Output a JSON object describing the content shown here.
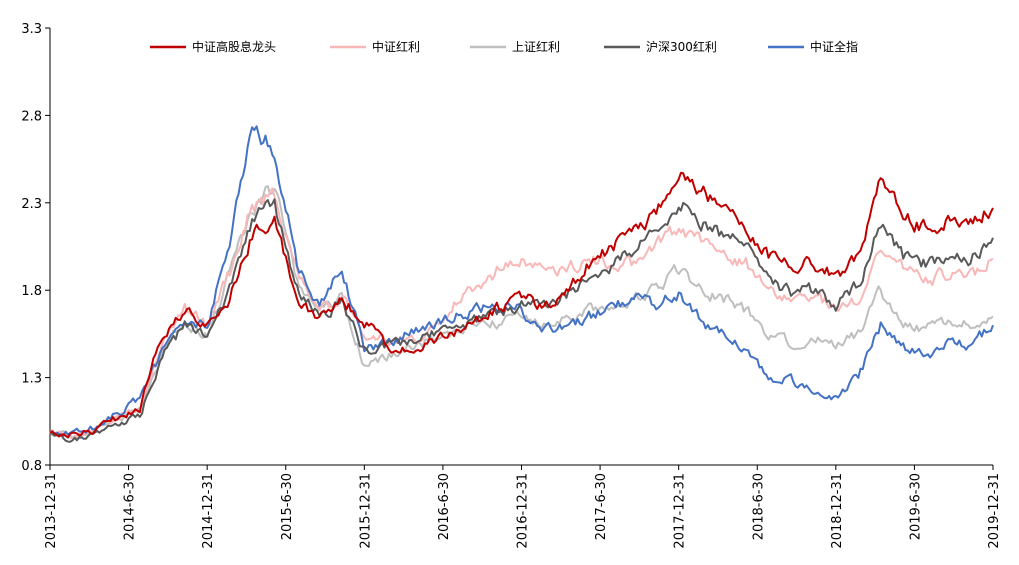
{
  "chart_data": {
    "type": "line",
    "title": "",
    "xlabel": "",
    "ylabel": "",
    "ylim": [
      0.8,
      3.3
    ],
    "y_ticks": [
      "0.8",
      "1.3",
      "1.8",
      "2.3",
      "2.8",
      "3.3"
    ],
    "x_ticks": [
      "2013-12-31",
      "2014-6-30",
      "2014-12-31",
      "2015-6-30",
      "2015-12-31",
      "2016-6-30",
      "2016-12-31",
      "2017-6-30",
      "2017-12-31",
      "2018-6-30",
      "2018-12-31",
      "2019-6-30",
      "2019-12-31"
    ],
    "legend_position": "top",
    "grid": false,
    "series": [
      {
        "name": "中证高股息龙头",
        "color": "#c00000",
        "values": [
          1.0,
          0.97,
          1.0,
          1.07,
          1.12,
          1.55,
          1.68,
          1.58,
          1.75,
          2.12,
          2.22,
          1.75,
          1.65,
          1.75,
          1.62,
          1.48,
          1.45,
          1.52,
          1.55,
          1.62,
          1.7,
          1.75,
          1.72,
          1.8,
          1.95,
          2.05,
          2.12,
          2.25,
          2.48,
          2.38,
          2.28,
          2.18,
          2.0,
          1.95,
          1.95,
          1.88,
          2.0,
          2.45,
          2.22,
          2.15,
          2.22,
          2.2,
          2.27
        ]
      },
      {
        "name": "中证红利",
        "color": "#f8b8b8",
        "values": [
          1.0,
          0.97,
          1.0,
          1.07,
          1.12,
          1.5,
          1.7,
          1.6,
          1.9,
          2.28,
          2.35,
          1.9,
          1.68,
          1.78,
          1.55,
          1.52,
          1.5,
          1.6,
          1.72,
          1.82,
          1.92,
          1.98,
          1.9,
          1.93,
          1.98,
          1.95,
          1.95,
          2.05,
          2.15,
          2.1,
          2.0,
          1.95,
          1.8,
          1.75,
          1.78,
          1.68,
          1.75,
          2.05,
          1.92,
          1.85,
          1.9,
          1.88,
          1.98
        ]
      },
      {
        "name": "上证红利",
        "color": "#bfbfbf",
        "values": [
          1.0,
          0.96,
          0.99,
          1.05,
          1.1,
          1.45,
          1.62,
          1.55,
          1.9,
          2.25,
          2.4,
          1.85,
          1.7,
          1.75,
          1.38,
          1.42,
          1.48,
          1.52,
          1.55,
          1.6,
          1.62,
          1.65,
          1.62,
          1.65,
          1.68,
          1.7,
          1.75,
          1.82,
          1.92,
          1.8,
          1.75,
          1.68,
          1.55,
          1.5,
          1.52,
          1.48,
          1.55,
          1.8,
          1.62,
          1.58,
          1.62,
          1.6,
          1.65
        ]
      },
      {
        "name": "沪深300红利",
        "color": "#595959",
        "values": [
          1.0,
          0.95,
          0.98,
          1.04,
          1.08,
          1.42,
          1.6,
          1.52,
          1.8,
          2.2,
          2.28,
          1.8,
          1.65,
          1.72,
          1.45,
          1.48,
          1.5,
          1.55,
          1.58,
          1.62,
          1.68,
          1.72,
          1.72,
          1.78,
          1.88,
          1.95,
          2.02,
          2.15,
          2.3,
          2.2,
          2.12,
          2.05,
          1.85,
          1.78,
          1.8,
          1.72,
          1.82,
          2.2,
          2.0,
          1.95,
          2.0,
          1.98,
          2.1
        ]
      },
      {
        "name": "中证全指",
        "color": "#4472c4",
        "values": [
          1.0,
          0.98,
          1.01,
          1.1,
          1.18,
          1.45,
          1.62,
          1.6,
          2.05,
          2.75,
          2.6,
          1.95,
          1.72,
          1.95,
          1.45,
          1.5,
          1.55,
          1.6,
          1.65,
          1.7,
          1.72,
          1.68,
          1.58,
          1.6,
          1.65,
          1.7,
          1.75,
          1.72,
          1.78,
          1.62,
          1.55,
          1.45,
          1.3,
          1.28,
          1.22,
          1.18,
          1.3,
          1.6,
          1.48,
          1.42,
          1.5,
          1.48,
          1.6
        ]
      }
    ]
  }
}
